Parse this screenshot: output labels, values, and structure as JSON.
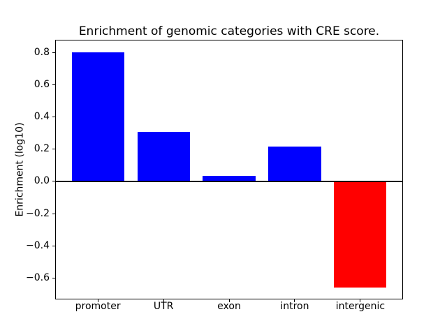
{
  "chart_data": {
    "type": "bar",
    "title": "Enrichment of genomic categories with CRE score.",
    "xlabel": "",
    "ylabel": "Enrichment (log10)",
    "categories": [
      "promoter",
      "UTR",
      "exon",
      "intron",
      "intergenic"
    ],
    "values": [
      0.805,
      0.31,
      0.033,
      0.215,
      -0.66
    ],
    "bar_colors": [
      "#0000ff",
      "#0000ff",
      "#0000ff",
      "#0000ff",
      "#ff0000"
    ],
    "yticks": [
      -0.6,
      -0.4,
      -0.2,
      0.0,
      0.2,
      0.4,
      0.6,
      0.8
    ],
    "ylim": [
      -0.73,
      0.877
    ],
    "xlim": [
      -0.64,
      4.64
    ],
    "bar_width": 0.8,
    "zero_line": true,
    "grid": false,
    "legend": null
  },
  "colors": {
    "bar_positive": "#0000ff",
    "bar_negative": "#ff0000",
    "axis": "#000000",
    "text": "#000000",
    "background": "#ffffff"
  }
}
